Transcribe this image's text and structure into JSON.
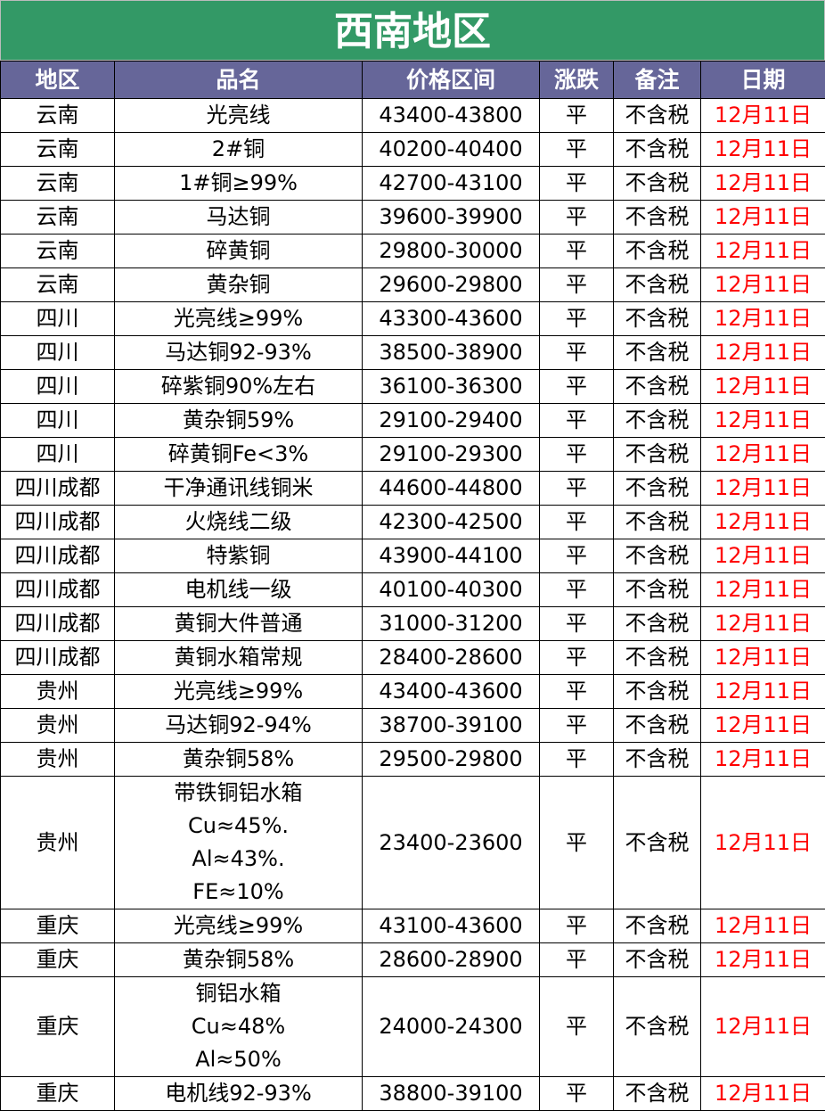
{
  "title": "西南地区",
  "headers": [
    "地区",
    "品名",
    "价格区间",
    "涨跌",
    "备注",
    "日期"
  ],
  "colors": {
    "title_bg": "#339966",
    "header_bg": "#666699",
    "date_text": "#ff0000"
  },
  "rows": [
    {
      "region": "云南",
      "product": [
        "光亮线"
      ],
      "price": "43400-43800",
      "change": "平",
      "note": "不含税",
      "date": "12月11日"
    },
    {
      "region": "云南",
      "product": [
        "2#铜"
      ],
      "price": "40200-40400",
      "change": "平",
      "note": "不含税",
      "date": "12月11日"
    },
    {
      "region": "云南",
      "product": [
        "1#铜≥99%"
      ],
      "price": "42700-43100",
      "change": "平",
      "note": "不含税",
      "date": "12月11日"
    },
    {
      "region": "云南",
      "product": [
        "马达铜"
      ],
      "price": "39600-39900",
      "change": "平",
      "note": "不含税",
      "date": "12月11日"
    },
    {
      "region": "云南",
      "product": [
        "碎黄铜"
      ],
      "price": "29800-30000",
      "change": "平",
      "note": "不含税",
      "date": "12月11日"
    },
    {
      "region": "云南",
      "product": [
        "黄杂铜"
      ],
      "price": "29600-29800",
      "change": "平",
      "note": "不含税",
      "date": "12月11日"
    },
    {
      "region": "四川",
      "product": [
        "光亮线≥99%"
      ],
      "price": "43300-43600",
      "change": "平",
      "note": "不含税",
      "date": "12月11日"
    },
    {
      "region": "四川",
      "product": [
        "马达铜92-93%"
      ],
      "price": "38500-38900",
      "change": "平",
      "note": "不含税",
      "date": "12月11日"
    },
    {
      "region": "四川",
      "product": [
        "碎紫铜90%左右"
      ],
      "price": "36100-36300",
      "change": "平",
      "note": "不含税",
      "date": "12月11日"
    },
    {
      "region": "四川",
      "product": [
        "黄杂铜59%"
      ],
      "price": "29100-29400",
      "change": "平",
      "note": "不含税",
      "date": "12月11日"
    },
    {
      "region": "四川",
      "product": [
        "碎黄铜Fe<3%"
      ],
      "price": "29100-29300",
      "change": "平",
      "note": "不含税",
      "date": "12月11日"
    },
    {
      "region": "四川成都",
      "product": [
        "干净通讯线铜米"
      ],
      "price": "44600-44800",
      "change": "平",
      "note": "不含税",
      "date": "12月11日"
    },
    {
      "region": "四川成都",
      "product": [
        "火烧线二级"
      ],
      "price": "42300-42500",
      "change": "平",
      "note": "不含税",
      "date": "12月11日"
    },
    {
      "region": "四川成都",
      "product": [
        "特紫铜"
      ],
      "price": "43900-44100",
      "change": "平",
      "note": "不含税",
      "date": "12月11日"
    },
    {
      "region": "四川成都",
      "product": [
        "电机线一级"
      ],
      "price": "40100-40300",
      "change": "平",
      "note": "不含税",
      "date": "12月11日"
    },
    {
      "region": "四川成都",
      "product": [
        "黄铜大件普通"
      ],
      "price": "31000-31200",
      "change": "平",
      "note": "不含税",
      "date": "12月11日"
    },
    {
      "region": "四川成都",
      "product": [
        "黄铜水箱常规"
      ],
      "price": "28400-28600",
      "change": "平",
      "note": "不含税",
      "date": "12月11日"
    },
    {
      "region": "贵州",
      "product": [
        "光亮线≥99%"
      ],
      "price": "43400-43600",
      "change": "平",
      "note": "不含税",
      "date": "12月11日"
    },
    {
      "region": "贵州",
      "product": [
        "马达铜92-94%"
      ],
      "price": "38700-39100",
      "change": "平",
      "note": "不含税",
      "date": "12月11日"
    },
    {
      "region": "贵州",
      "product": [
        "黄杂铜58%"
      ],
      "price": "29500-29800",
      "change": "平",
      "note": "不含税",
      "date": "12月11日"
    },
    {
      "region": "贵州",
      "product": [
        "带铁铜铝水箱",
        "Cu≈45%.",
        "Al≈43%.",
        "FE≈10%"
      ],
      "price": "23400-23600",
      "change": "平",
      "note": "不含税",
      "date": "12月11日"
    },
    {
      "region": "重庆",
      "product": [
        "光亮线≥99%"
      ],
      "price": "43100-43600",
      "change": "平",
      "note": "不含税",
      "date": "12月11日"
    },
    {
      "region": "重庆",
      "product": [
        "黄杂铜58%"
      ],
      "price": "28600-28900",
      "change": "平",
      "note": "不含税",
      "date": "12月11日"
    },
    {
      "region": "重庆",
      "product": [
        "铜铝水箱",
        "Cu≈48%",
        "Al≈50%"
      ],
      "price": "24000-24300",
      "change": "平",
      "note": "不含税",
      "date": "12月11日"
    },
    {
      "region": "重庆",
      "product": [
        "电机线92-93%"
      ],
      "price": "38800-39100",
      "change": "平",
      "note": "不含税",
      "date": "12月11日"
    }
  ]
}
